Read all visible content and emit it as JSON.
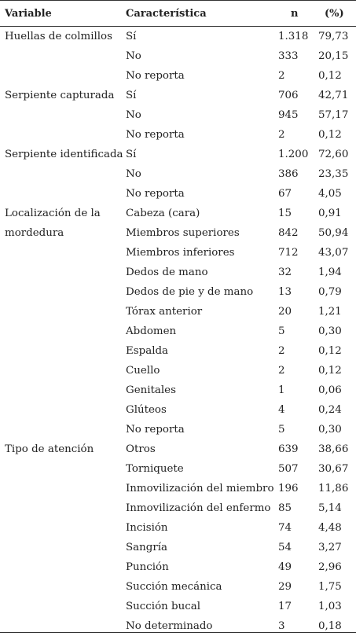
{
  "headers": {
    "variable": "Variable",
    "caracteristica": "Característica",
    "n": "n",
    "pct": "(%)"
  },
  "rows": [
    {
      "variable": "Huellas de colmillos",
      "caracteristica": "Sí",
      "n": "1.318",
      "pct": "79,73"
    },
    {
      "variable": "",
      "caracteristica": "No",
      "n": "333",
      "pct": "20,15"
    },
    {
      "variable": "",
      "caracteristica": "No reporta",
      "n": "2",
      "pct": "0,12"
    },
    {
      "variable": "Serpiente capturada",
      "caracteristica": "Sí",
      "n": "706",
      "pct": "42,71"
    },
    {
      "variable": "",
      "caracteristica": "No",
      "n": "945",
      "pct": "57,17"
    },
    {
      "variable": "",
      "caracteristica": "No reporta",
      "n": "2",
      "pct": "0,12"
    },
    {
      "variable": "Serpiente identificada",
      "caracteristica": "Sí",
      "n": "1.200",
      "pct": "72,60"
    },
    {
      "variable": "",
      "caracteristica": "No",
      "n": "386",
      "pct": "23,35"
    },
    {
      "variable": "",
      "caracteristica": "No reporta",
      "n": "67",
      "pct": "4,05"
    },
    {
      "variable": "Localización de la",
      "caracteristica": "Cabeza (cara)",
      "n": "15",
      "pct": "0,91"
    },
    {
      "variable": "mordedura",
      "caracteristica": "Miembros superiores",
      "n": "842",
      "pct": "50,94"
    },
    {
      "variable": "",
      "caracteristica": "Miembros inferiores",
      "n": "712",
      "pct": "43,07"
    },
    {
      "variable": "",
      "caracteristica": "Dedos de mano",
      "n": "32",
      "pct": "1,94"
    },
    {
      "variable": "",
      "caracteristica": "Dedos de pie y de mano",
      "n": "13",
      "pct": "0,79"
    },
    {
      "variable": "",
      "caracteristica": "Tórax anterior",
      "n": "20",
      "pct": "1,21"
    },
    {
      "variable": "",
      "caracteristica": "Abdomen",
      "n": "5",
      "pct": "0,30"
    },
    {
      "variable": "",
      "caracteristica": "Espalda",
      "n": "2",
      "pct": "0,12"
    },
    {
      "variable": "",
      "caracteristica": "Cuello",
      "n": "2",
      "pct": "0,12"
    },
    {
      "variable": "",
      "caracteristica": "Genitales",
      "n": "1",
      "pct": "0,06"
    },
    {
      "variable": "",
      "caracteristica": "Glúteos",
      "n": "4",
      "pct": "0,24"
    },
    {
      "variable": "",
      "caracteristica": "No reporta",
      "n": "5",
      "pct": "0,30"
    },
    {
      "variable": "Tipo de atención",
      "caracteristica": "Otros",
      "n": "639",
      "pct": "38,66"
    },
    {
      "variable": "",
      "caracteristica": "Torniquete",
      "n": "507",
      "pct": "30,67"
    },
    {
      "variable": "",
      "caracteristica": "Inmovilización del miembro",
      "n": "196",
      "pct": "11,86"
    },
    {
      "variable": "",
      "caracteristica": "Inmovilización del enfermo",
      "n": "85",
      "pct": "5,14"
    },
    {
      "variable": "",
      "caracteristica": "Incisión",
      "n": "74",
      "pct": "4,48"
    },
    {
      "variable": "",
      "caracteristica": "Sangría",
      "n": "54",
      "pct": "3,27"
    },
    {
      "variable": "",
      "caracteristica": "Punción",
      "n": "49",
      "pct": "2,96"
    },
    {
      "variable": "",
      "caracteristica": "Succión mecánica",
      "n": "29",
      "pct": "1,75"
    },
    {
      "variable": "",
      "caracteristica": "Succión bucal",
      "n": "17",
      "pct": "1,03"
    },
    {
      "variable": "",
      "caracteristica": "No determinado",
      "n": "3",
      "pct": "0,18"
    }
  ]
}
